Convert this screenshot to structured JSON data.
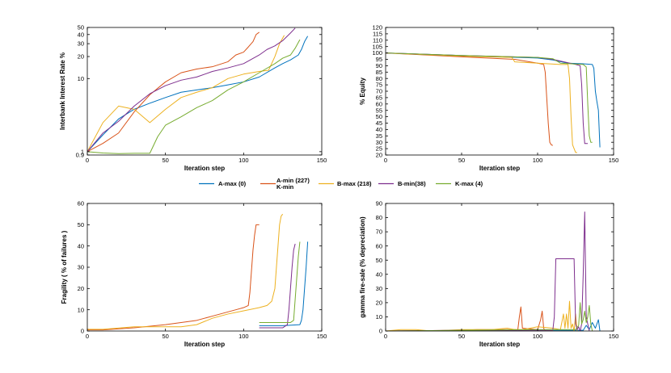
{
  "colors": {
    "A-max": "#0072bd",
    "A-min": "#d95319",
    "B-max": "#edb120",
    "B-min": "#7e2f8e",
    "K-max": "#77ac30"
  },
  "legend": {
    "items": [
      {
        "key": "A-max",
        "label": "A-max (0)"
      },
      {
        "key": "A-min",
        "label": "A-min (227)",
        "label2": "K-min"
      },
      {
        "key": "B-max",
        "label": "B-max (218)"
      },
      {
        "key": "B-min",
        "label": "B-min(38)"
      },
      {
        "key": "K-max",
        "label": "K-max (4)"
      }
    ]
  },
  "chart_data": [
    {
      "type": "line",
      "id": "interest",
      "xlabel": "Iteration step",
      "ylabel": "Interbank Interest Rate %",
      "xlim": [
        0,
        150
      ],
      "xticks": [
        0,
        50,
        100,
        150
      ],
      "yscale": "log",
      "ylim": [
        0.9,
        50
      ],
      "yticks": [
        0.9,
        1,
        10,
        20,
        30,
        40,
        50
      ],
      "series": [
        {
          "name": "A-max",
          "x": [
            0,
            10,
            20,
            30,
            40,
            50,
            60,
            70,
            80,
            90,
            100,
            110,
            120,
            125,
            130,
            135,
            137,
            139,
            141
          ],
          "y": [
            1,
            1.7,
            2.8,
            3.8,
            4.6,
            5.5,
            6.5,
            7,
            7.5,
            8.2,
            9,
            10.5,
            14,
            16,
            18,
            21,
            25,
            32,
            38
          ]
        },
        {
          "name": "A-min",
          "x": [
            0,
            10,
            20,
            30,
            40,
            50,
            60,
            70,
            80,
            90,
            95,
            100,
            103,
            106,
            108,
            110
          ],
          "y": [
            1,
            1.3,
            1.8,
            3.5,
            6,
            9,
            12,
            13.5,
            14.5,
            17,
            21,
            23,
            27,
            32,
            40,
            43
          ]
        },
        {
          "name": "B-max",
          "x": [
            0,
            10,
            20,
            30,
            40,
            50,
            60,
            70,
            80,
            90,
            100,
            110,
            116,
            120,
            123,
            126
          ],
          "y": [
            1,
            2.5,
            4.2,
            3.8,
            2.5,
            3.8,
            5.5,
            6.5,
            7.5,
            10,
            11.5,
            12.5,
            13,
            20,
            30,
            39
          ]
        },
        {
          "name": "B-min",
          "x": [
            0,
            10,
            20,
            30,
            40,
            50,
            60,
            70,
            80,
            90,
            100,
            110,
            115,
            120,
            125,
            130,
            133
          ],
          "y": [
            1,
            1.8,
            2.6,
            4.2,
            6.2,
            8,
            9.5,
            10.5,
            12.5,
            14,
            16,
            21,
            25,
            28,
            33,
            42,
            49
          ]
        },
        {
          "name": "K-max",
          "x": [
            0,
            10,
            20,
            30,
            40,
            45,
            50,
            60,
            70,
            80,
            90,
            100,
            110,
            120,
            125,
            130,
            133,
            136
          ],
          "y": [
            1,
            0.96,
            0.94,
            0.95,
            0.95,
            1.6,
            2.3,
            3,
            4,
            5,
            7,
            9,
            12,
            16,
            19,
            21,
            26,
            34
          ]
        }
      ]
    },
    {
      "type": "line",
      "id": "equity",
      "xlabel": "Iteration step",
      "ylabel": "% Equity",
      "xlim": [
        0,
        150
      ],
      "xticks": [
        0,
        50,
        100,
        150
      ],
      "ylim": [
        20,
        120
      ],
      "yticks": [
        20,
        25,
        30,
        35,
        40,
        45,
        50,
        55,
        60,
        65,
        70,
        75,
        80,
        85,
        90,
        95,
        100,
        105,
        110,
        115,
        120
      ],
      "series": [
        {
          "name": "A-max",
          "x": [
            0,
            50,
            100,
            110,
            120,
            130,
            136,
            137,
            138,
            139,
            140,
            141
          ],
          "y": [
            100,
            98,
            96,
            94.5,
            92,
            91.5,
            91,
            88,
            70,
            62,
            55,
            26
          ]
        },
        {
          "name": "A-min",
          "x": [
            0,
            50,
            85,
            100,
            104,
            105,
            106,
            107,
            108,
            109,
            110
          ],
          "y": [
            100,
            97,
            95,
            92,
            91,
            85,
            65,
            45,
            30,
            28,
            27.5
          ]
        },
        {
          "name": "B-max",
          "x": [
            0,
            50,
            83,
            85,
            100,
            115,
            120,
            121,
            122,
            123,
            125,
            126
          ],
          "y": [
            100,
            97.5,
            96.5,
            93,
            92,
            91,
            91,
            80,
            50,
            28,
            22,
            22
          ]
        },
        {
          "name": "B-min",
          "x": [
            0,
            50,
            100,
            110,
            125,
            128,
            129,
            130,
            131,
            133
          ],
          "y": [
            100,
            98,
            96.5,
            95,
            91,
            90,
            75,
            45,
            29,
            29
          ]
        },
        {
          "name": "K-max",
          "x": [
            0,
            50,
            100,
            110,
            115,
            130,
            132,
            133,
            134,
            135,
            136
          ],
          "y": [
            100,
            98,
            96.5,
            95.5,
            92,
            91,
            89,
            60,
            35,
            30,
            30
          ]
        }
      ]
    },
    {
      "type": "line",
      "id": "fragility",
      "xlabel": "Iteration step",
      "ylabel": "Fragility ( % of failures )",
      "xlim": [
        0,
        150
      ],
      "xticks": [
        0,
        50,
        100,
        150
      ],
      "ylim": [
        0,
        60
      ],
      "yticks": [
        0,
        10,
        20,
        30,
        40,
        50,
        60
      ],
      "series": [
        {
          "name": "A-max",
          "x": [
            110,
            125,
            136,
            137,
            138,
            139,
            140,
            141
          ],
          "y": [
            2.5,
            2.5,
            3,
            5,
            10,
            20,
            30,
            42
          ]
        },
        {
          "name": "A-min",
          "x": [
            0,
            10,
            30,
            50,
            60,
            70,
            80,
            90,
            95,
            100,
            103,
            104,
            105,
            106,
            107,
            108,
            110
          ],
          "y": [
            0.5,
            0.5,
            1.5,
            3,
            4,
            5,
            7,
            9,
            10,
            11,
            12,
            18,
            28,
            38,
            45,
            50,
            50
          ]
        },
        {
          "name": "B-max",
          "x": [
            0,
            10,
            30,
            50,
            60,
            70,
            80,
            90,
            100,
            110,
            115,
            118,
            120,
            121,
            122,
            123,
            124,
            125
          ],
          "y": [
            0.8,
            0.8,
            2,
            2,
            2,
            3,
            6,
            8,
            9.5,
            11,
            12,
            14,
            20,
            30,
            40,
            50,
            54,
            55
          ]
        },
        {
          "name": "B-min",
          "x": [
            110,
            125,
            128,
            129,
            130,
            131,
            132,
            133
          ],
          "y": [
            1.5,
            1.5,
            3,
            10,
            20,
            30,
            38,
            41
          ]
        },
        {
          "name": "K-max",
          "x": [
            110,
            130,
            132,
            133,
            134,
            135,
            136
          ],
          "y": [
            4,
            4,
            5,
            15,
            25,
            35,
            42
          ]
        }
      ]
    },
    {
      "type": "line",
      "id": "firesale",
      "xlabel": "Iteration step",
      "ylabel": "gamma fire-sale (% depreciation)",
      "xlim": [
        0,
        150
      ],
      "xticks": [
        0,
        50,
        100,
        150
      ],
      "ylim": [
        0,
        90
      ],
      "yticks": [
        0,
        10,
        20,
        30,
        40,
        50,
        60,
        70,
        80,
        90
      ],
      "series": [
        {
          "name": "A-max",
          "x": [
            0,
            50,
            100,
            110,
            130,
            132,
            134,
            136,
            138,
            140,
            141
          ],
          "y": [
            0,
            0.3,
            0.5,
            0.5,
            0.5,
            4,
            1,
            6,
            2,
            8,
            0
          ]
        },
        {
          "name": "A-min",
          "x": [
            0,
            50,
            60,
            70,
            80,
            87,
            88,
            89,
            90,
            100,
            102,
            103,
            104,
            105
          ],
          "y": [
            0,
            0.5,
            1,
            1,
            1,
            1,
            10,
            17,
            2,
            1,
            8,
            14,
            2,
            0
          ]
        },
        {
          "name": "B-max",
          "x": [
            0,
            10,
            20,
            30,
            40,
            50,
            70,
            80,
            85,
            90,
            100,
            110,
            115,
            117,
            118,
            119,
            120,
            121,
            122,
            123,
            124,
            125,
            126
          ],
          "y": [
            0,
            1,
            1,
            0,
            0.5,
            1,
            1,
            2,
            1,
            1,
            3,
            2,
            1,
            12,
            2,
            12,
            2,
            21,
            2,
            5,
            0,
            12,
            0
          ]
        },
        {
          "name": "B-min",
          "x": [
            0,
            50,
            100,
            110,
            111,
            112,
            120,
            124,
            125,
            126,
            127,
            128,
            129,
            130,
            131,
            132,
            133,
            134
          ],
          "y": [
            0,
            0.5,
            0.5,
            0.5,
            10,
            51,
            51,
            51,
            5,
            1,
            3,
            0,
            5,
            40,
            84,
            10,
            5,
            0
          ]
        },
        {
          "name": "K-max",
          "x": [
            0,
            50,
            100,
            110,
            125,
            127,
            128,
            129,
            130,
            131,
            132,
            133,
            134,
            135,
            136
          ],
          "y": [
            0,
            0.5,
            1,
            1,
            1,
            4,
            20,
            5,
            8,
            14,
            6,
            10,
            18,
            5,
            0
          ]
        }
      ]
    }
  ]
}
